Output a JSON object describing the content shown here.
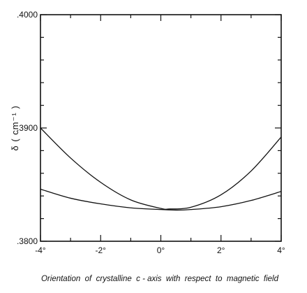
{
  "chart_data": {
    "type": "line",
    "title": "",
    "xlabel": "Orientation  of  crystalline  c - axis  with  respect  to  magnetic  field",
    "ylabel": "δ ( cm⁻¹ )",
    "xlim": [
      -4,
      4
    ],
    "ylim": [
      0.38,
      0.4
    ],
    "x_ticks": [
      -4,
      -2,
      0,
      2,
      4
    ],
    "x_tick_labels": [
      "-4°",
      "-2°",
      "0°",
      "2°",
      "4°"
    ],
    "y_ticks": [
      0.38,
      0.39,
      0.4
    ],
    "y_tick_labels": [
      ".3800",
      ".3900",
      ".4000"
    ],
    "grid": false,
    "series": [
      {
        "x": [
          -4,
          -3,
          -2,
          -1,
          0,
          0.3,
          1,
          2,
          3,
          4
        ],
        "values": [
          0.39,
          0.38735,
          0.3852,
          0.38365,
          0.3829,
          0.38285,
          0.383,
          0.3841,
          0.3862,
          0.3892
        ]
      },
      {
        "x": [
          -4,
          -3,
          -2,
          -1,
          0,
          0.5,
          1,
          2,
          3,
          4
        ],
        "values": [
          0.3846,
          0.3838,
          0.3833,
          0.38295,
          0.3828,
          0.38275,
          0.3828,
          0.38305,
          0.3836,
          0.3844
        ]
      }
    ]
  }
}
